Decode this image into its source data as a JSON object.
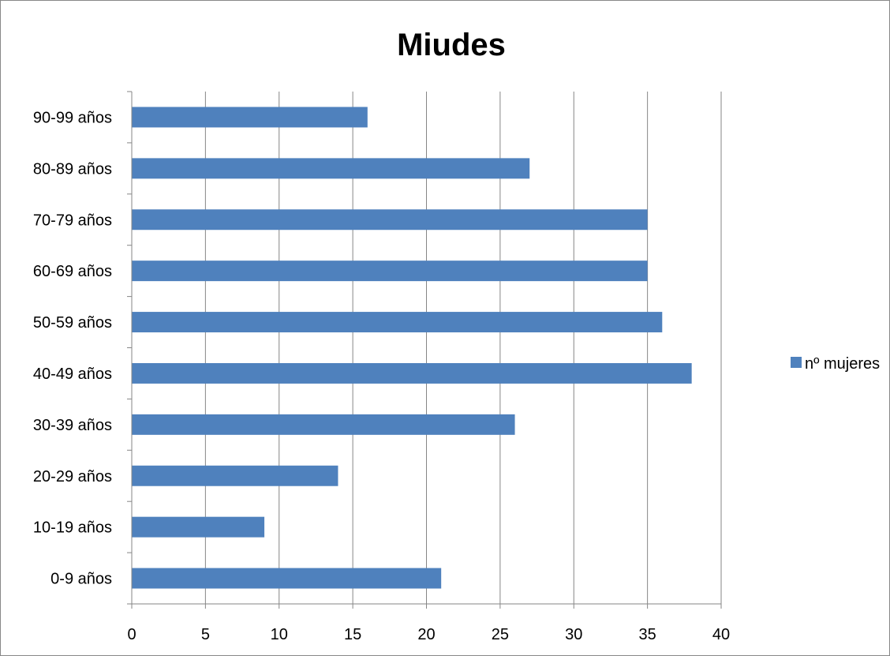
{
  "chart_data": {
    "type": "bar",
    "orientation": "horizontal",
    "title": "Miudes",
    "categories": [
      "0-9 años",
      "10-19 años",
      "20-29 años",
      "30-39 años",
      "40-49 años",
      "50-59 años",
      "60-69 años",
      "70-79 años",
      "80-89 años",
      "90-99 años"
    ],
    "series": [
      {
        "name": "nº mujeres",
        "values": [
          21,
          9,
          14,
          26,
          38,
          36,
          35,
          35,
          27,
          16
        ],
        "color": "#4F81BD"
      }
    ],
    "xlim": [
      0,
      40
    ],
    "xticks": [
      0,
      5,
      10,
      15,
      20,
      25,
      30,
      35,
      40
    ],
    "xlabel": "",
    "ylabel": "",
    "grid": "vertical",
    "legend_position": "right"
  }
}
